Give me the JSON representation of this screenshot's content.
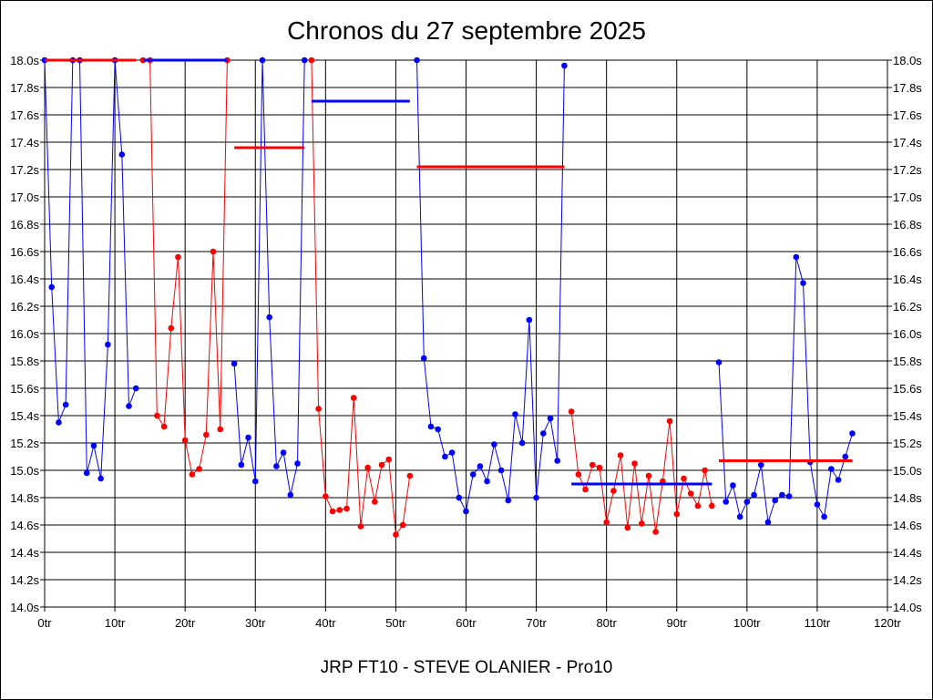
{
  "chart_data": {
    "type": "line",
    "title": "Chronos du 27 septembre 2025",
    "caption": "JRP FT10 - STEVE OLANIER - Pro10",
    "xlim": [
      0,
      120
    ],
    "ylim": [
      14.0,
      18.0
    ],
    "grid": true,
    "x_ticks": [
      {
        "v": 0,
        "label": "0tr"
      },
      {
        "v": 10,
        "label": "10tr"
      },
      {
        "v": 20,
        "label": "20tr"
      },
      {
        "v": 30,
        "label": "30tr"
      },
      {
        "v": 40,
        "label": "40tr"
      },
      {
        "v": 50,
        "label": "50tr"
      },
      {
        "v": 60,
        "label": "60tr"
      },
      {
        "v": 70,
        "label": "70tr"
      },
      {
        "v": 80,
        "label": "80tr"
      },
      {
        "v": 90,
        "label": "90tr"
      },
      {
        "v": 100,
        "label": "100tr"
      },
      {
        "v": 110,
        "label": "110tr"
      },
      {
        "v": 120,
        "label": "120tr"
      }
    ],
    "y_ticks": [
      {
        "v": 14.0,
        "label": "14.0s"
      },
      {
        "v": 14.2,
        "label": "14.2s"
      },
      {
        "v": 14.4,
        "label": "14.4s"
      },
      {
        "v": 14.6,
        "label": "14.6s"
      },
      {
        "v": 14.8,
        "label": "14.8s"
      },
      {
        "v": 15.0,
        "label": "15.0s"
      },
      {
        "v": 15.2,
        "label": "15.2s"
      },
      {
        "v": 15.4,
        "label": "15.4s"
      },
      {
        "v": 15.6,
        "label": "15.6s"
      },
      {
        "v": 15.8,
        "label": "15.8s"
      },
      {
        "v": 16.0,
        "label": "16.0s"
      },
      {
        "v": 16.2,
        "label": "16.2s"
      },
      {
        "v": 16.4,
        "label": "16.4s"
      },
      {
        "v": 16.6,
        "label": "16.6s"
      },
      {
        "v": 16.8,
        "label": "16.8s"
      },
      {
        "v": 17.0,
        "label": "17.0s"
      },
      {
        "v": 17.2,
        "label": "17.2s"
      },
      {
        "v": 17.4,
        "label": "17.4s"
      },
      {
        "v": 17.6,
        "label": "17.6s"
      },
      {
        "v": 17.8,
        "label": "17.8s"
      },
      {
        "v": 18.0,
        "label": "18.0s"
      }
    ],
    "series": [
      {
        "color": "#0000ff",
        "points": [
          [
            0,
            18.0
          ],
          [
            1,
            16.34
          ],
          [
            2,
            15.35
          ],
          [
            3,
            15.48
          ],
          [
            4,
            18.0
          ],
          [
            5,
            18.0
          ],
          [
            6,
            14.98
          ],
          [
            7,
            15.18
          ],
          [
            8,
            14.94
          ],
          [
            9,
            15.92
          ],
          [
            10,
            18.0
          ],
          [
            11,
            17.31
          ],
          [
            12,
            15.47
          ],
          [
            13,
            15.6
          ]
        ]
      },
      {
        "color": "#ff0000",
        "points": [
          [
            14,
            18.0
          ],
          [
            15,
            18.0
          ],
          [
            16,
            15.4
          ],
          [
            17,
            15.32
          ],
          [
            18,
            16.04
          ],
          [
            19,
            16.56
          ],
          [
            20,
            15.22
          ],
          [
            21,
            14.97
          ],
          [
            22,
            15.01
          ],
          [
            23,
            15.26
          ],
          [
            24,
            16.6
          ],
          [
            25,
            15.3
          ],
          [
            26,
            18.0
          ]
        ]
      },
      {
        "color": "#0000ff",
        "points": [
          [
            27,
            15.78
          ],
          [
            28,
            15.04
          ],
          [
            29,
            15.24
          ],
          [
            30,
            14.92
          ],
          [
            31,
            18.0
          ],
          [
            32,
            16.12
          ],
          [
            33,
            15.03
          ],
          [
            34,
            15.13
          ],
          [
            35,
            14.82
          ],
          [
            36,
            15.05
          ],
          [
            37,
            18.0
          ]
        ]
      },
      {
        "color": "#ff0000",
        "points": [
          [
            38,
            18.0
          ],
          [
            39,
            15.45
          ],
          [
            40,
            14.81
          ],
          [
            41,
            14.7
          ],
          [
            42,
            14.71
          ],
          [
            43,
            14.72
          ],
          [
            44,
            15.53
          ],
          [
            45,
            14.59
          ],
          [
            46,
            15.02
          ],
          [
            47,
            14.77
          ],
          [
            48,
            15.04
          ],
          [
            49,
            15.08
          ],
          [
            50,
            14.53
          ],
          [
            51,
            14.6
          ],
          [
            52,
            14.96
          ]
        ]
      },
      {
        "color": "#0000ff",
        "points": [
          [
            53,
            18.0
          ],
          [
            54,
            15.82
          ],
          [
            55,
            15.32
          ],
          [
            56,
            15.3
          ],
          [
            57,
            15.1
          ],
          [
            58,
            15.13
          ],
          [
            59,
            14.8
          ],
          [
            60,
            14.7
          ],
          [
            61,
            14.97
          ],
          [
            62,
            15.03
          ],
          [
            63,
            14.92
          ],
          [
            64,
            15.19
          ],
          [
            65,
            15.0
          ],
          [
            66,
            14.78
          ],
          [
            67,
            15.41
          ],
          [
            68,
            15.2
          ],
          [
            69,
            16.1
          ],
          [
            70,
            14.8
          ],
          [
            71,
            15.27
          ],
          [
            72,
            15.38
          ],
          [
            73,
            15.07
          ],
          [
            74,
            17.96
          ]
        ]
      },
      {
        "color": "#ff0000",
        "points": [
          [
            75,
            15.43
          ],
          [
            76,
            14.97
          ],
          [
            77,
            14.86
          ],
          [
            78,
            15.04
          ],
          [
            79,
            15.02
          ],
          [
            80,
            14.62
          ],
          [
            81,
            14.85
          ],
          [
            82,
            15.11
          ],
          [
            83,
            14.58
          ],
          [
            84,
            15.05
          ],
          [
            85,
            14.61
          ],
          [
            86,
            14.96
          ],
          [
            87,
            14.55
          ],
          [
            88,
            14.92
          ],
          [
            89,
            15.36
          ],
          [
            90,
            14.68
          ],
          [
            91,
            14.94
          ],
          [
            92,
            14.83
          ],
          [
            93,
            14.74
          ],
          [
            94,
            15.0
          ],
          [
            95,
            14.74
          ]
        ]
      },
      {
        "color": "#0000ff",
        "points": [
          [
            96,
            15.79
          ],
          [
            97,
            14.77
          ],
          [
            98,
            14.89
          ],
          [
            99,
            14.66
          ],
          [
            100,
            14.77
          ],
          [
            101,
            14.82
          ],
          [
            102,
            15.04
          ],
          [
            103,
            14.62
          ],
          [
            104,
            14.78
          ],
          [
            105,
            14.82
          ],
          [
            106,
            14.81
          ],
          [
            107,
            16.56
          ],
          [
            108,
            16.37
          ],
          [
            109,
            15.06
          ],
          [
            110,
            14.75
          ],
          [
            111,
            14.66
          ],
          [
            112,
            15.01
          ],
          [
            113,
            14.93
          ],
          [
            114,
            15.1
          ],
          [
            115,
            15.27
          ]
        ]
      }
    ],
    "averages": [
      {
        "color": "#ff0000",
        "x1": 0,
        "x2": 13,
        "y": 18.0
      },
      {
        "color": "#0000ff",
        "x1": 14,
        "x2": 26,
        "y": 18.0
      },
      {
        "color": "#ff0000",
        "x1": 27,
        "x2": 37,
        "y": 17.36
      },
      {
        "color": "#0000ff",
        "x1": 38,
        "x2": 52,
        "y": 17.7
      },
      {
        "color": "#ff0000",
        "x1": 53,
        "x2": 74,
        "y": 17.22
      },
      {
        "color": "#0000ff",
        "x1": 75,
        "x2": 95,
        "y": 14.9
      },
      {
        "color": "#ff0000",
        "x1": 96,
        "x2": 115,
        "y": 15.07
      }
    ]
  }
}
